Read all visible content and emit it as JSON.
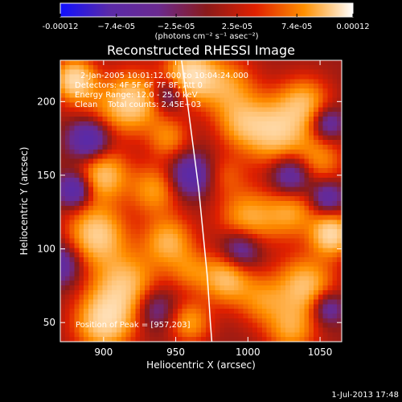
{
  "chart_data": {
    "type": "heatmap",
    "title": "Reconstructed RHESSI Image",
    "xlabel": "Heliocentric X (arcsec)",
    "ylabel": "Heliocentric Y (arcsec)",
    "xlim": [
      870,
      1065
    ],
    "ylim": [
      37,
      228
    ],
    "x_ticks": [
      900,
      950,
      1000,
      1050
    ],
    "y_ticks": [
      50,
      100,
      150,
      200
    ],
    "colorbar": {
      "range": [
        -0.00012,
        0.00012
      ],
      "tick_values": [
        -0.00012,
        -7.4e-05,
        -2.5e-05,
        2.5e-05,
        7.4e-05,
        0.00012
      ],
      "tick_labels": [
        "-0.00012",
        "−7.4e-05",
        "−2.5e-05",
        "2.5e-05",
        "7.4e-05",
        "0.00012"
      ],
      "unit_label": "(photons cm⁻² s⁻¹ asec⁻²)",
      "colors": [
        "#1010ff",
        "#5a2aa8",
        "#6a2a90",
        "#8a1a1a",
        "#e02000",
        "#ff9000",
        "#ffffff"
      ]
    },
    "info_lines": [
      "2-Jan-2005 10:01:12.000 to 10:04:24.000",
      "Detectors: 4F 5F 6F 7F 8F, Att 0",
      "Energy Range: 12.0 - 25.0 keV",
      "Clean    Total counts: 2.45E+03"
    ],
    "peak_annotation": "Position of Peak = [957,203]",
    "limb_curve": [
      [
        954,
        228
      ],
      [
        958,
        200
      ],
      [
        962,
        170
      ],
      [
        966,
        140
      ],
      [
        969,
        110
      ],
      [
        972,
        80
      ],
      [
        974,
        50
      ],
      [
        975,
        37
      ]
    ],
    "image_sources": [
      {
        "x": 880,
        "y": 215,
        "v": 1.0,
        "s": 10
      },
      {
        "x": 895,
        "y": 190,
        "v": 0.3,
        "s": 14
      },
      {
        "x": 920,
        "y": 200,
        "v": 0.9,
        "s": 14
      },
      {
        "x": 945,
        "y": 175,
        "v": 0.5,
        "s": 10
      },
      {
        "x": 960,
        "y": 218,
        "v": 1.0,
        "s": 12
      },
      {
        "x": 985,
        "y": 210,
        "v": 0.6,
        "s": 14
      },
      {
        "x": 995,
        "y": 185,
        "v": 0.5,
        "s": 12
      },
      {
        "x": 1020,
        "y": 180,
        "v": 0.9,
        "s": 16
      },
      {
        "x": 1040,
        "y": 200,
        "v": 0.6,
        "s": 12
      },
      {
        "x": 1050,
        "y": 160,
        "v": 0.5,
        "s": 12
      },
      {
        "x": 900,
        "y": 150,
        "v": 0.8,
        "s": 12
      },
      {
        "x": 935,
        "y": 140,
        "v": 0.6,
        "s": 12
      },
      {
        "x": 985,
        "y": 150,
        "v": 0.3,
        "s": 10
      },
      {
        "x": 1000,
        "y": 120,
        "v": 0.7,
        "s": 14
      },
      {
        "x": 1030,
        "y": 125,
        "v": 0.6,
        "s": 12
      },
      {
        "x": 1058,
        "y": 110,
        "v": 1.0,
        "s": 10
      },
      {
        "x": 895,
        "y": 110,
        "v": 0.9,
        "s": 14
      },
      {
        "x": 945,
        "y": 105,
        "v": 0.7,
        "s": 12
      },
      {
        "x": 915,
        "y": 75,
        "v": 0.8,
        "s": 16
      },
      {
        "x": 960,
        "y": 85,
        "v": 0.4,
        "s": 10
      },
      {
        "x": 985,
        "y": 80,
        "v": 0.8,
        "s": 12
      },
      {
        "x": 1010,
        "y": 65,
        "v": 0.5,
        "s": 12
      },
      {
        "x": 1040,
        "y": 75,
        "v": 0.8,
        "s": 14
      },
      {
        "x": 900,
        "y": 50,
        "v": 0.9,
        "s": 14
      },
      {
        "x": 960,
        "y": 50,
        "v": 0.6,
        "s": 10
      },
      {
        "x": 1030,
        "y": 45,
        "v": 0.6,
        "s": 12
      },
      {
        "x": 890,
        "y": 175,
        "v": -0.9,
        "s": 10
      },
      {
        "x": 880,
        "y": 140,
        "v": -0.8,
        "s": 8
      },
      {
        "x": 945,
        "y": 205,
        "v": -0.6,
        "s": 8
      },
      {
        "x": 960,
        "y": 150,
        "v": -0.7,
        "s": 10
      },
      {
        "x": 995,
        "y": 100,
        "v": -0.7,
        "s": 10
      },
      {
        "x": 1030,
        "y": 150,
        "v": -0.7,
        "s": 10
      },
      {
        "x": 1055,
        "y": 135,
        "v": -0.6,
        "s": 8
      },
      {
        "x": 1055,
        "y": 185,
        "v": -0.6,
        "s": 8
      },
      {
        "x": 935,
        "y": 60,
        "v": -0.5,
        "s": 10
      },
      {
        "x": 1055,
        "y": 60,
        "v": -0.6,
        "s": 8
      },
      {
        "x": 870,
        "y": 90,
        "v": -0.6,
        "s": 10
      }
    ]
  },
  "footer": {
    "timestamp": "1-Jul-2013 17:48"
  }
}
